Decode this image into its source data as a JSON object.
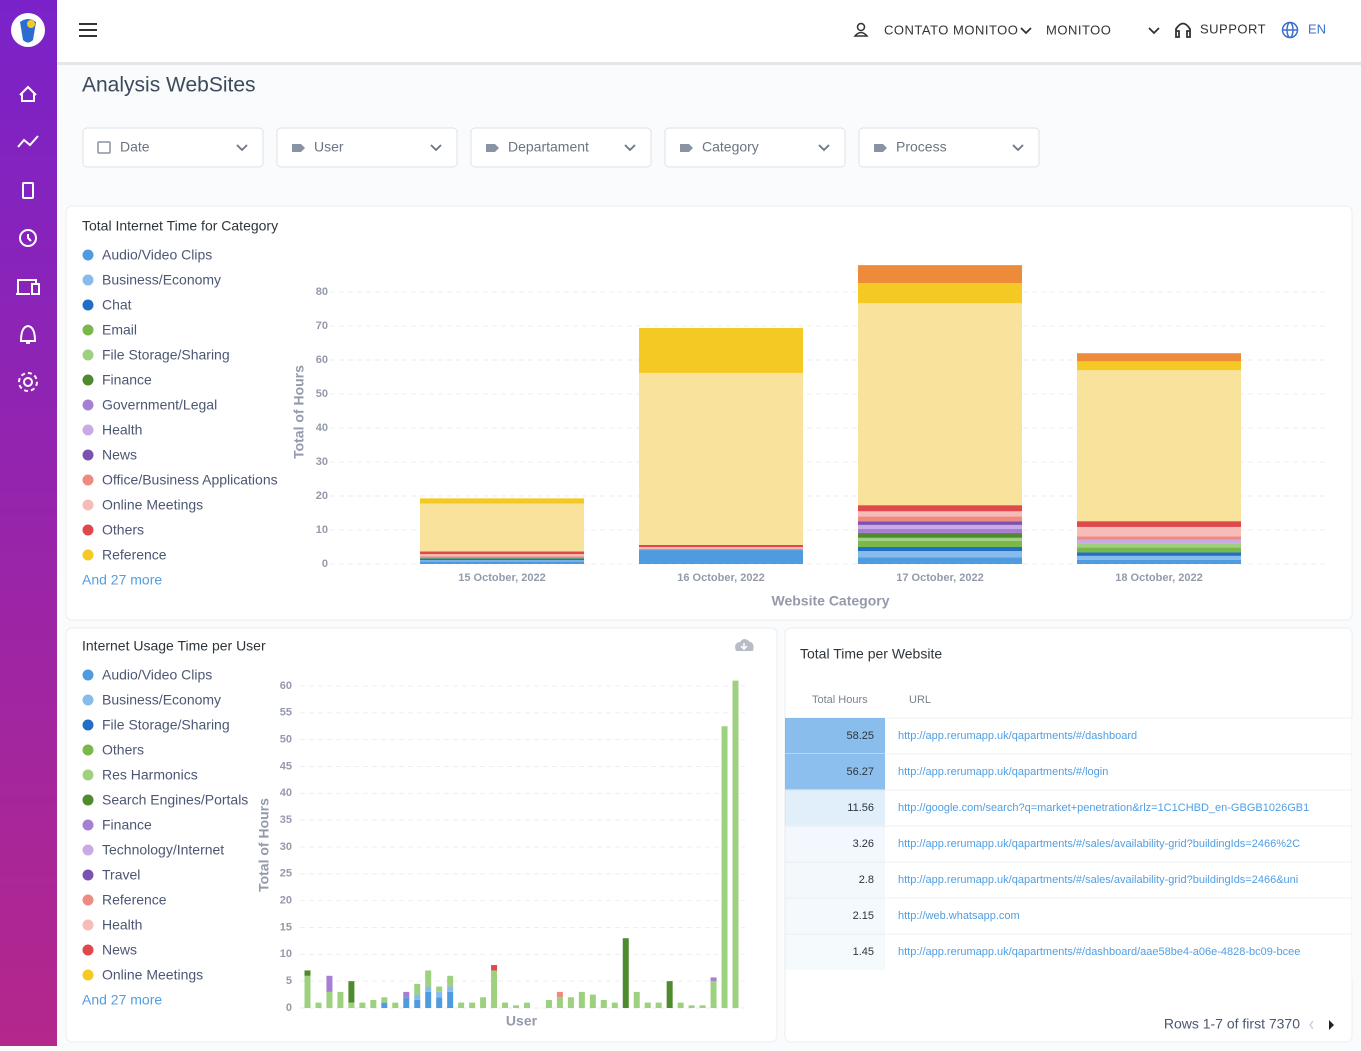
{
  "header": {
    "user": "CONTATO MONITOO",
    "company": "MONITOO",
    "support": "SUPPORT",
    "language": "EN"
  },
  "page_title": "Analysis WebSites",
  "filters": [
    "Date",
    "User",
    "Departament",
    "Category",
    "Process"
  ],
  "chart_data": [
    {
      "type": "bar",
      "stacked": true,
      "title": "Total Internet Time for Category",
      "x_label": "Website Category",
      "y_label": "Total of Hours",
      "legend_more": "And 27 more",
      "categories": [
        "15 October, 2022",
        "16 October, 2022",
        "17 October, 2022",
        "18 October, 2022"
      ],
      "ylim": [
        0,
        90
      ],
      "yticks": [
        0,
        10,
        20,
        30,
        40,
        50,
        60,
        70,
        80
      ],
      "grid": true,
      "series": [
        {
          "name": "Audio/Video Clips",
          "color": "#4e9be0",
          "values": [
            0.8,
            4.1,
            2,
            1.2
          ]
        },
        {
          "name": "Business/Economy",
          "color": "#86bbeb",
          "values": [
            0.3,
            0,
            1.8,
            1.2
          ]
        },
        {
          "name": "Chat",
          "color": "#1f6fc6",
          "values": [
            0.5,
            0,
            1.2,
            1
          ]
        },
        {
          "name": "Email",
          "color": "#7ab84c",
          "values": [
            0.3,
            0,
            1.8,
            1.5
          ]
        },
        {
          "name": "File Storage/Sharing",
          "color": "#9dd17f",
          "values": [
            0,
            0,
            0.9,
            1.1
          ]
        },
        {
          "name": "Finance",
          "color": "#4f8a2e",
          "values": [
            0,
            0,
            1.4,
            0
          ]
        },
        {
          "name": "Government/Legal",
          "color": "#a67fd3",
          "values": [
            0,
            0,
            1.2,
            0
          ]
        },
        {
          "name": "Health",
          "color": "#c9aae4",
          "values": [
            0,
            0,
            1.2,
            1.2
          ]
        },
        {
          "name": "News",
          "color": "#7c52b1",
          "values": [
            0,
            0,
            1,
            0
          ]
        },
        {
          "name": "Office/Business Applications",
          "color": "#ef8a83",
          "values": [
            0.4,
            0.4,
            1.5,
            0.9
          ]
        },
        {
          "name": "Online Meetings",
          "color": "#f6bcb7",
          "values": [
            0.6,
            0.5,
            1.5,
            2.8
          ]
        },
        {
          "name": "Others",
          "color": "#e0484b",
          "values": [
            0.8,
            0.6,
            1.8,
            1.7
          ]
        },
        {
          "name": null,
          "color": "#f9e29c",
          "values": [
            14.1,
            50.6,
            59.4,
            44.4
          ]
        },
        {
          "name": "Reference",
          "color": "#f5c924",
          "values": [
            1.5,
            13.2,
            5.9,
            2.6
          ]
        },
        {
          "name": null,
          "color": "#ee8b3a",
          "values": [
            0,
            0,
            5.3,
            2.4
          ]
        }
      ]
    },
    {
      "type": "bar",
      "stacked": true,
      "title": "Internet Usage Time per User",
      "x_label": "User",
      "y_label": "Total of Hours",
      "legend_more": "And 27 more",
      "categories": [
        null,
        null,
        null,
        null,
        null,
        null,
        null,
        null,
        null,
        null,
        null,
        null,
        null,
        null,
        null,
        null,
        null,
        null,
        null,
        null,
        null,
        null,
        null,
        null,
        null,
        null,
        null,
        null,
        null,
        null,
        null,
        null,
        null,
        null,
        null,
        null,
        null,
        null,
        null,
        null
      ],
      "ylim": [
        0,
        62
      ],
      "yticks": [
        0,
        5,
        10,
        15,
        20,
        25,
        30,
        35,
        40,
        45,
        50,
        55,
        60
      ],
      "grid": true,
      "series": [
        {
          "name": "Audio/Video Clips",
          "color": "#4e9be0",
          "values": [
            0,
            0,
            0,
            0,
            0,
            0,
            0,
            1,
            0,
            2,
            1.5,
            3,
            2,
            3,
            0,
            0,
            0,
            0,
            0,
            0,
            0,
            0,
            0,
            0,
            0,
            0,
            0,
            0,
            0,
            0,
            0,
            0,
            0,
            0,
            0,
            0,
            0,
            0,
            0,
            0
          ]
        },
        {
          "name": "Business/Economy",
          "color": "#86bbeb",
          "values": [
            0,
            0,
            0,
            0,
            0,
            0,
            0,
            0,
            0,
            0,
            1,
            1,
            1,
            1,
            0,
            0,
            0,
            0,
            0,
            0,
            0,
            0,
            0,
            0,
            0,
            0,
            0,
            0,
            0,
            0,
            0,
            0,
            0,
            0,
            0,
            0,
            0,
            0,
            0,
            0
          ]
        },
        {
          "name": "File Storage/Sharing",
          "color": "#1f6fc6",
          "values": [
            0,
            0,
            0,
            0,
            0,
            0,
            0,
            0,
            0,
            0,
            0,
            0,
            0,
            0,
            0,
            0,
            0,
            0,
            0,
            0,
            0,
            0,
            0,
            0,
            0,
            0,
            0,
            0,
            0,
            0,
            0,
            0,
            0,
            0,
            0,
            0,
            0,
            0,
            0,
            0
          ]
        },
        {
          "name": "Others",
          "color": "#7ab84c",
          "values": [
            0,
            0,
            0,
            0,
            0,
            0,
            0,
            0,
            0,
            0,
            0,
            0,
            0,
            0,
            0,
            0,
            0,
            0,
            0,
            0,
            0,
            0,
            0,
            0,
            0,
            0,
            0,
            0,
            0,
            0,
            0,
            0,
            0,
            0,
            0,
            0,
            0,
            0,
            0,
            0
          ]
        },
        {
          "name": "Res Harmonics",
          "color": "#9dd17f",
          "values": [
            6,
            1,
            3,
            3,
            1,
            1,
            1.5,
            1,
            1,
            0,
            2,
            3,
            1,
            2,
            1,
            1,
            2,
            7,
            1,
            0.5,
            1,
            0,
            1.5,
            2,
            2,
            3,
            2.5,
            1.5,
            1,
            0,
            3,
            1,
            1,
            0,
            1,
            0.5,
            0.5,
            5,
            52.5,
            61
          ]
        },
        {
          "name": "Search Engines/Portals",
          "color": "#4f8a2e",
          "values": [
            1,
            0,
            0,
            0,
            4,
            0,
            0,
            0,
            0,
            0,
            0,
            0,
            0,
            0,
            0,
            0,
            0,
            0,
            0,
            0,
            0,
            0,
            0,
            0,
            0,
            0,
            0,
            0,
            0,
            13,
            0,
            0,
            0,
            5,
            0,
            0,
            0,
            0,
            0,
            0
          ]
        },
        {
          "name": "Finance",
          "color": "#a67fd3",
          "values": [
            0,
            0,
            3,
            0,
            0,
            0,
            0,
            0,
            0,
            1,
            0,
            0,
            0,
            0,
            0,
            0,
            0,
            0,
            0,
            0,
            0,
            0,
            0,
            0,
            0,
            0,
            0,
            0,
            0,
            0,
            0,
            0,
            0,
            0,
            0,
            0,
            0,
            0.7,
            0,
            0
          ]
        },
        {
          "name": "Technology/Internet",
          "color": "#c9aae4",
          "values": [
            0,
            0,
            0,
            0,
            0,
            0,
            0,
            0,
            0,
            0,
            0,
            0,
            0,
            0,
            0,
            0,
            0,
            0,
            0,
            0,
            0,
            0,
            0,
            0,
            0,
            0,
            0,
            0,
            0,
            0,
            0,
            0,
            0,
            0,
            0,
            0,
            0,
            0,
            0,
            0
          ]
        },
        {
          "name": "Travel",
          "color": "#7c52b1",
          "values": [
            0,
            0,
            0,
            0,
            0,
            0,
            0,
            0,
            0,
            0,
            0,
            0,
            0,
            0,
            0,
            0,
            0,
            0,
            0,
            0,
            0,
            0,
            0,
            0,
            0,
            0,
            0,
            0,
            0,
            0,
            0,
            0,
            0,
            0,
            0,
            0,
            0,
            0,
            0,
            0
          ]
        },
        {
          "name": "Reference",
          "color": "#ef8a83",
          "values": [
            0,
            0,
            0,
            0,
            0,
            0,
            0,
            0,
            0,
            0,
            0,
            0,
            0,
            0,
            0,
            0,
            0,
            0,
            0,
            0,
            0,
            0,
            0,
            1,
            0,
            0,
            0,
            0,
            0,
            0,
            0,
            0,
            0,
            0,
            0,
            0,
            0,
            0,
            0,
            0
          ]
        },
        {
          "name": "Health",
          "color": "#f6bcb7",
          "values": [
            0,
            0,
            0,
            0,
            0,
            0,
            0,
            0,
            0,
            0,
            0,
            0,
            0,
            0,
            0,
            0,
            0,
            0,
            0,
            0,
            0,
            0,
            0,
            0,
            0,
            0,
            0,
            0,
            0,
            0,
            0,
            0,
            0,
            0,
            0,
            0,
            0,
            0,
            0,
            0
          ]
        },
        {
          "name": "News",
          "color": "#e0484b",
          "values": [
            0,
            0,
            0,
            0,
            0,
            0,
            0,
            0,
            0,
            0,
            0,
            0,
            0,
            0,
            0,
            0,
            0,
            1,
            0,
            0,
            0,
            0,
            0,
            0,
            0,
            0,
            0,
            0,
            0,
            0,
            0,
            0,
            0,
            0,
            0,
            0,
            0,
            0,
            0,
            0
          ]
        },
        {
          "name": "Online Meetings",
          "color": "#f5c924",
          "values": [
            0,
            0,
            0,
            0,
            0,
            0,
            0,
            0,
            0,
            0,
            0,
            0,
            0,
            0,
            0,
            0,
            0,
            0,
            0,
            0,
            0,
            0,
            0,
            0,
            0,
            0,
            0,
            0,
            0,
            0,
            0,
            0,
            0,
            0,
            0,
            0,
            0,
            0,
            0,
            0
          ]
        }
      ]
    }
  ],
  "table": {
    "title": "Total Time per Website",
    "columns": [
      "Total Hours",
      "URL"
    ],
    "rows": [
      [
        58.25,
        "http://app.rerumapp.uk/qapartments/#/dashboard"
      ],
      [
        56.27,
        "http://app.rerumapp.uk/qapartments/#/login"
      ],
      [
        11.56,
        "http://google.com/search?q=market+penetration&rlz=1C1CHBD_en-GBGB1026GB1"
      ],
      [
        3.26,
        "http://app.rerumapp.uk/qapartments/#/sales/availability-grid?buildingIds=2466%2C"
      ],
      [
        2.8,
        "http://app.rerumapp.uk/qapartments/#/sales/availability-grid?buildingIds=2466&uni"
      ],
      [
        2.15,
        "http://web.whatsapp.com"
      ],
      [
        1.45,
        "http://app.rerumapp.uk/qapartments/#/dashboard/aae58be4-a06e-4828-bc09-bcee"
      ]
    ],
    "footer": "Rows 1-7 of first 7370"
  }
}
